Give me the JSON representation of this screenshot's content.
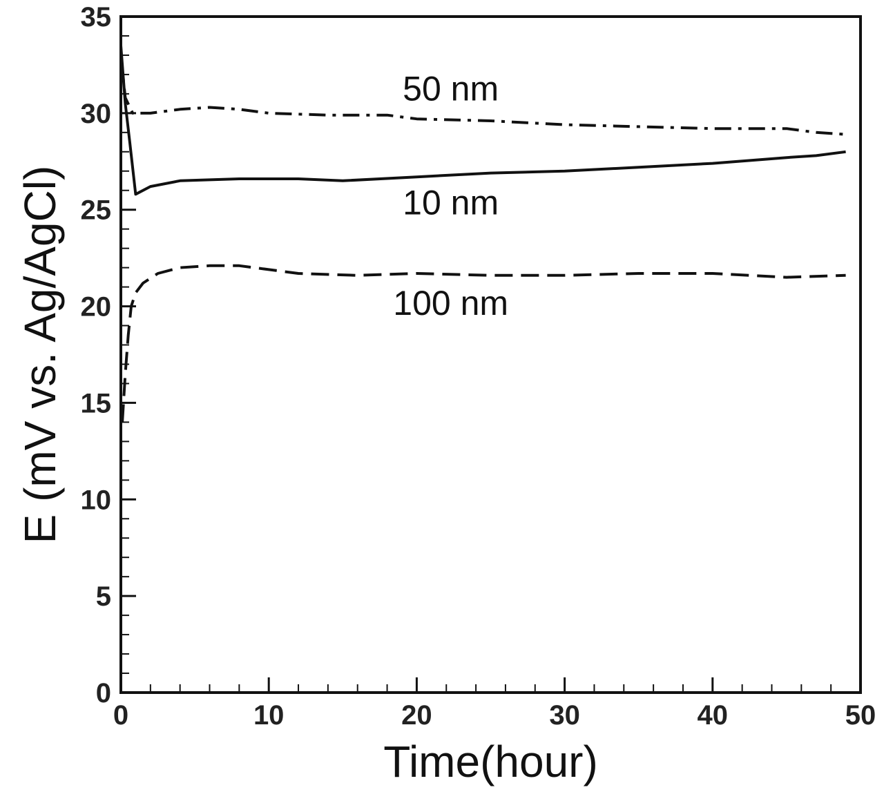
{
  "chart_data": {
    "type": "line",
    "title": "",
    "xlabel": "Time(hour)",
    "ylabel": "E (mV vs. Ag/AgCl)",
    "xlim": [
      0,
      50
    ],
    "ylim": [
      0,
      35
    ],
    "x_ticks": [
      "0",
      "10",
      "20",
      "30",
      "40",
      "50"
    ],
    "y_ticks": [
      "0",
      "5",
      "10",
      "15",
      "20",
      "25",
      "30",
      "35"
    ],
    "x_major_step": 10,
    "x_minor_step": 2,
    "y_major_step": 5,
    "y_minor_step": 1,
    "grid": false,
    "legend": "none",
    "series": [
      {
        "name": "50 nm",
        "style": "dashdot",
        "label_at": [
          22.3,
          31.3
        ],
        "points": [
          [
            0,
            33.0
          ],
          [
            0.3,
            30.8
          ],
          [
            0.8,
            30.0
          ],
          [
            2,
            30.0
          ],
          [
            4,
            30.2
          ],
          [
            6,
            30.3
          ],
          [
            8,
            30.2
          ],
          [
            10,
            30.0
          ],
          [
            14,
            29.9
          ],
          [
            18,
            29.9
          ],
          [
            20,
            29.7
          ],
          [
            25,
            29.6
          ],
          [
            30,
            29.4
          ],
          [
            35,
            29.3
          ],
          [
            40,
            29.2
          ],
          [
            45,
            29.2
          ],
          [
            47,
            29.0
          ],
          [
            49,
            28.9
          ]
        ]
      },
      {
        "name": "10 nm",
        "style": "solid",
        "label_at": [
          22.3,
          25.4
        ],
        "points": [
          [
            0,
            33.5
          ],
          [
            0.3,
            30.5
          ],
          [
            0.6,
            28.5
          ],
          [
            1.0,
            25.8
          ],
          [
            2,
            26.2
          ],
          [
            4,
            26.5
          ],
          [
            8,
            26.6
          ],
          [
            12,
            26.6
          ],
          [
            15,
            26.5
          ],
          [
            20,
            26.7
          ],
          [
            25,
            26.9
          ],
          [
            30,
            27.0
          ],
          [
            35,
            27.2
          ],
          [
            40,
            27.4
          ],
          [
            45,
            27.7
          ],
          [
            47,
            27.8
          ],
          [
            49,
            28.0
          ]
        ]
      },
      {
        "name": "100 nm",
        "style": "dashed",
        "label_at": [
          22.3,
          20.2
        ],
        "points": [
          [
            0.1,
            14.0
          ],
          [
            0.3,
            16.5
          ],
          [
            0.5,
            18.5
          ],
          [
            0.7,
            20.0
          ],
          [
            1.0,
            20.7
          ],
          [
            1.5,
            21.2
          ],
          [
            2.5,
            21.7
          ],
          [
            4,
            22.0
          ],
          [
            6,
            22.1
          ],
          [
            8,
            22.1
          ],
          [
            10,
            21.9
          ],
          [
            12,
            21.7
          ],
          [
            16,
            21.6
          ],
          [
            20,
            21.7
          ],
          [
            25,
            21.6
          ],
          [
            30,
            21.6
          ],
          [
            35,
            21.7
          ],
          [
            40,
            21.7
          ],
          [
            45,
            21.5
          ],
          [
            49,
            21.6
          ]
        ]
      }
    ]
  }
}
